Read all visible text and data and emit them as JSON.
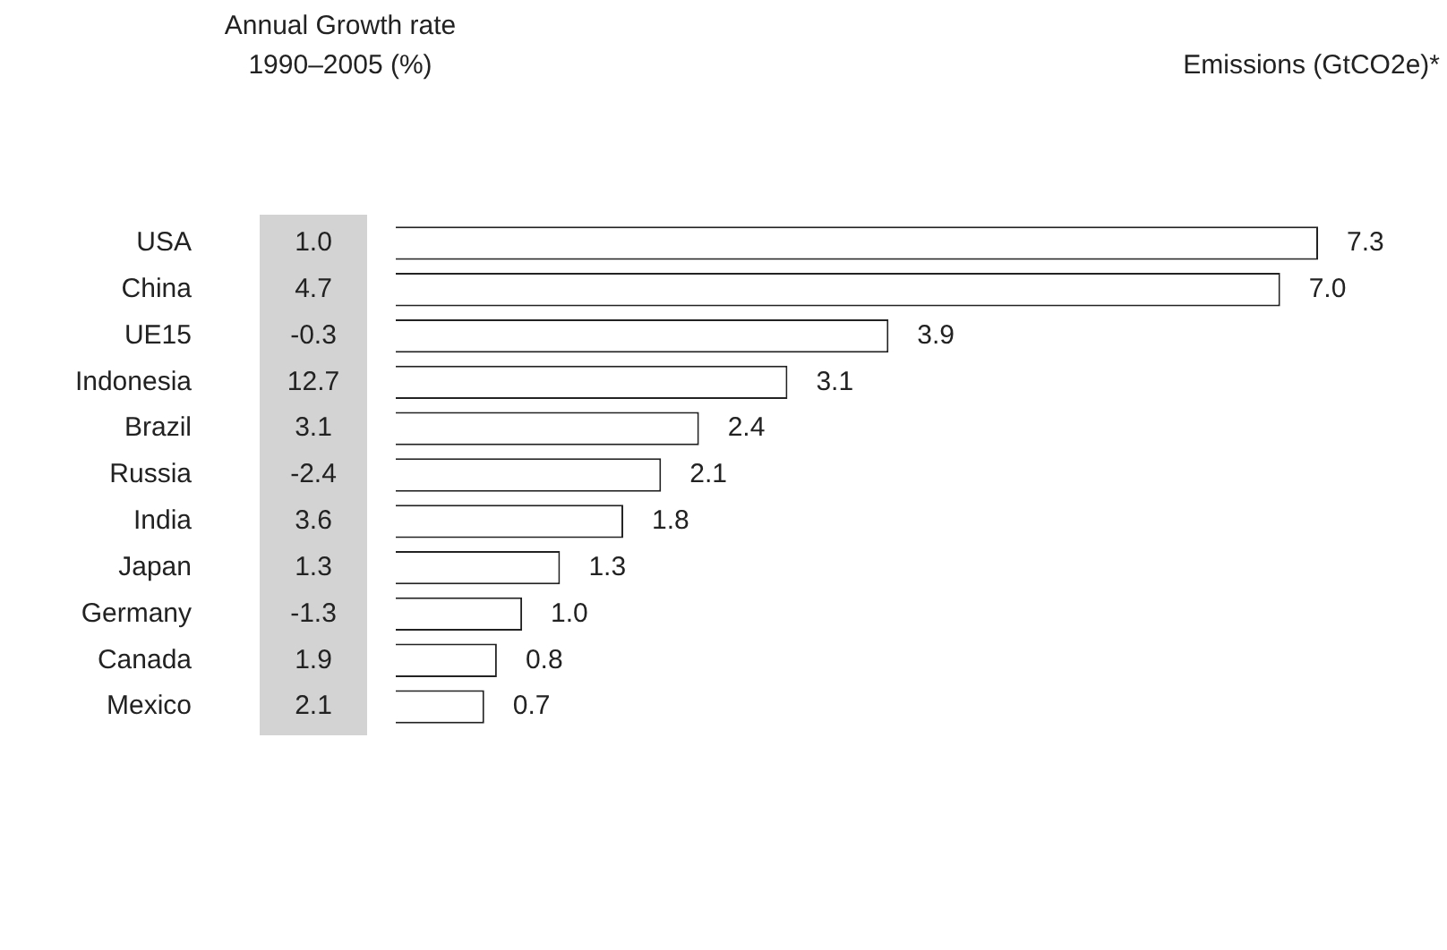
{
  "chart_data": {
    "type": "bar",
    "orientation": "horizontal",
    "categories": [
      "USA",
      "China",
      "UE15",
      "Indonesia",
      "Brazil",
      "Russia",
      "India",
      "Japan",
      "Germany",
      "Canada",
      "Mexico"
    ],
    "values": [
      7.3,
      7.0,
      3.9,
      3.1,
      2.4,
      2.1,
      1.8,
      1.3,
      1.0,
      0.8,
      0.7
    ],
    "value_labels": [
      "7.3",
      "7.0",
      "3.9",
      "3.1",
      "2.4",
      "2.1",
      "1.8",
      "1.3",
      "1.0",
      "0.8",
      "0.7"
    ],
    "color": "#ffffff",
    "annotations": [
      "Annual Growth rate\n1990–2005 (%)",
      "Emissions (GtCO2e)*",
      "1.0",
      "4.7",
      "-0.3",
      "12.7",
      "3.1",
      "-2.4",
      "3.6",
      "1.3",
      "-1.3",
      "1.9",
      "2.1"
    ]
  }
}
